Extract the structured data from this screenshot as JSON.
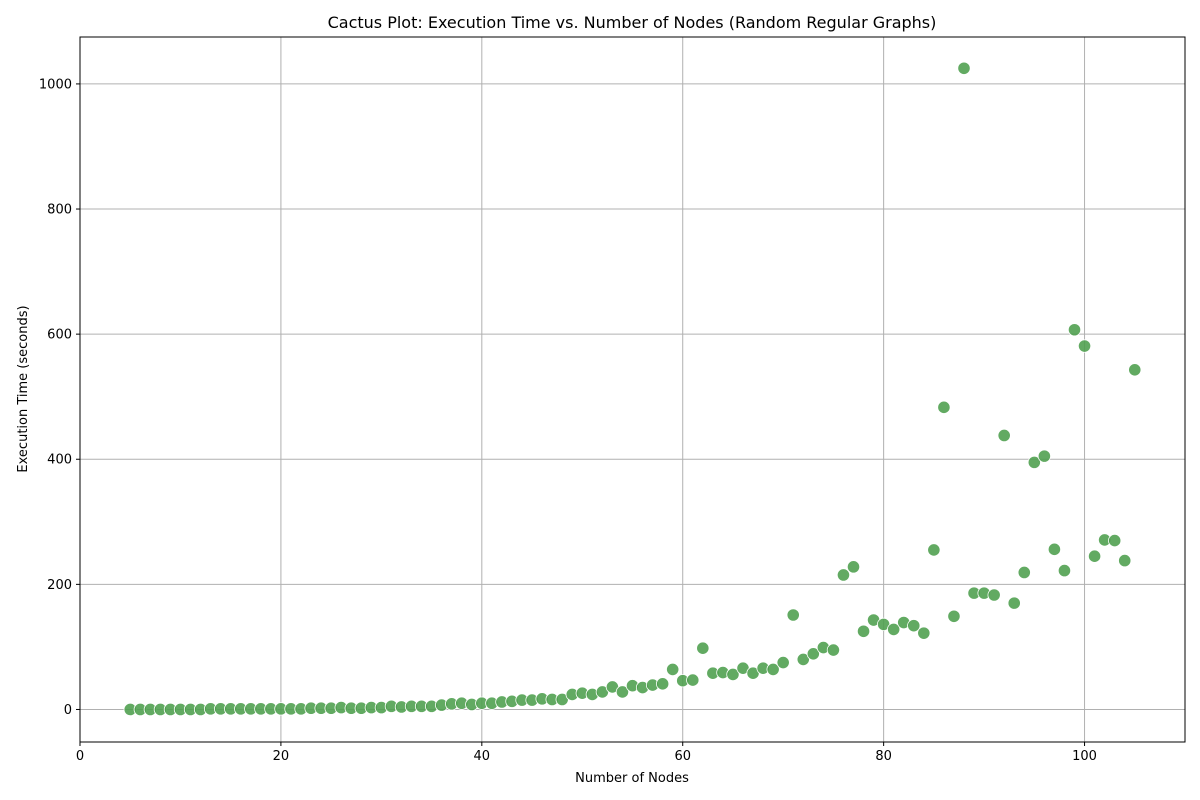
{
  "chart_data": {
    "type": "scatter",
    "title": "Cactus Plot: Execution Time vs. Number of Nodes (Random Regular Graphs)",
    "xlabel": "Number of Nodes",
    "ylabel": "Execution Time (seconds)",
    "xlim": [
      0,
      110
    ],
    "ylim": [
      -52,
      1075
    ],
    "xticks": [
      0,
      20,
      40,
      60,
      80,
      100
    ],
    "yticks": [
      0,
      200,
      400,
      600,
      800,
      1000
    ],
    "grid": true,
    "legend": "none",
    "point_color": "#4c9e4c",
    "series": [
      {
        "x": [
          5,
          6,
          7,
          8,
          9,
          10,
          11,
          12,
          13,
          14,
          15,
          16,
          17,
          18,
          19,
          20,
          21,
          22,
          23,
          24,
          25,
          26,
          27,
          28,
          29,
          30,
          31,
          32,
          33,
          34,
          35,
          36,
          37,
          38,
          39,
          40,
          41,
          42,
          43,
          44,
          45,
          46,
          47,
          48,
          49,
          50,
          51,
          52,
          53,
          54,
          55,
          56,
          57,
          58,
          59,
          60,
          61,
          62,
          63,
          64,
          65,
          66,
          67,
          68,
          69,
          70,
          71,
          72,
          73,
          74,
          75,
          76,
          77,
          78,
          79,
          80,
          81,
          82,
          83,
          84,
          85,
          86,
          87,
          88,
          89,
          90,
          91,
          92,
          93,
          94,
          95,
          96,
          97,
          98,
          99,
          100,
          101,
          102,
          103,
          104,
          105
        ],
        "y": [
          0,
          0,
          0,
          0,
          0,
          0,
          0,
          0,
          1,
          1,
          1,
          1,
          1,
          1,
          1,
          1,
          1,
          1,
          2,
          2,
          2,
          3,
          2,
          2,
          3,
          3,
          5,
          4,
          5,
          5,
          5,
          7,
          9,
          10,
          8,
          10,
          10,
          12,
          13,
          15,
          15,
          17,
          16,
          16,
          24,
          26,
          24,
          28,
          36,
          28,
          38,
          35,
          39,
          41,
          64,
          46,
          47,
          98,
          58,
          59,
          56,
          66,
          58,
          66,
          64,
          75,
          151,
          80,
          89,
          99,
          95,
          215,
          228,
          125,
          143,
          136,
          128,
          139,
          134,
          122,
          255,
          483,
          149,
          1025,
          186,
          186,
          183,
          438,
          170,
          219,
          395,
          405,
          256,
          222,
          607,
          581,
          245,
          271,
          270,
          238,
          543
        ]
      }
    ]
  }
}
